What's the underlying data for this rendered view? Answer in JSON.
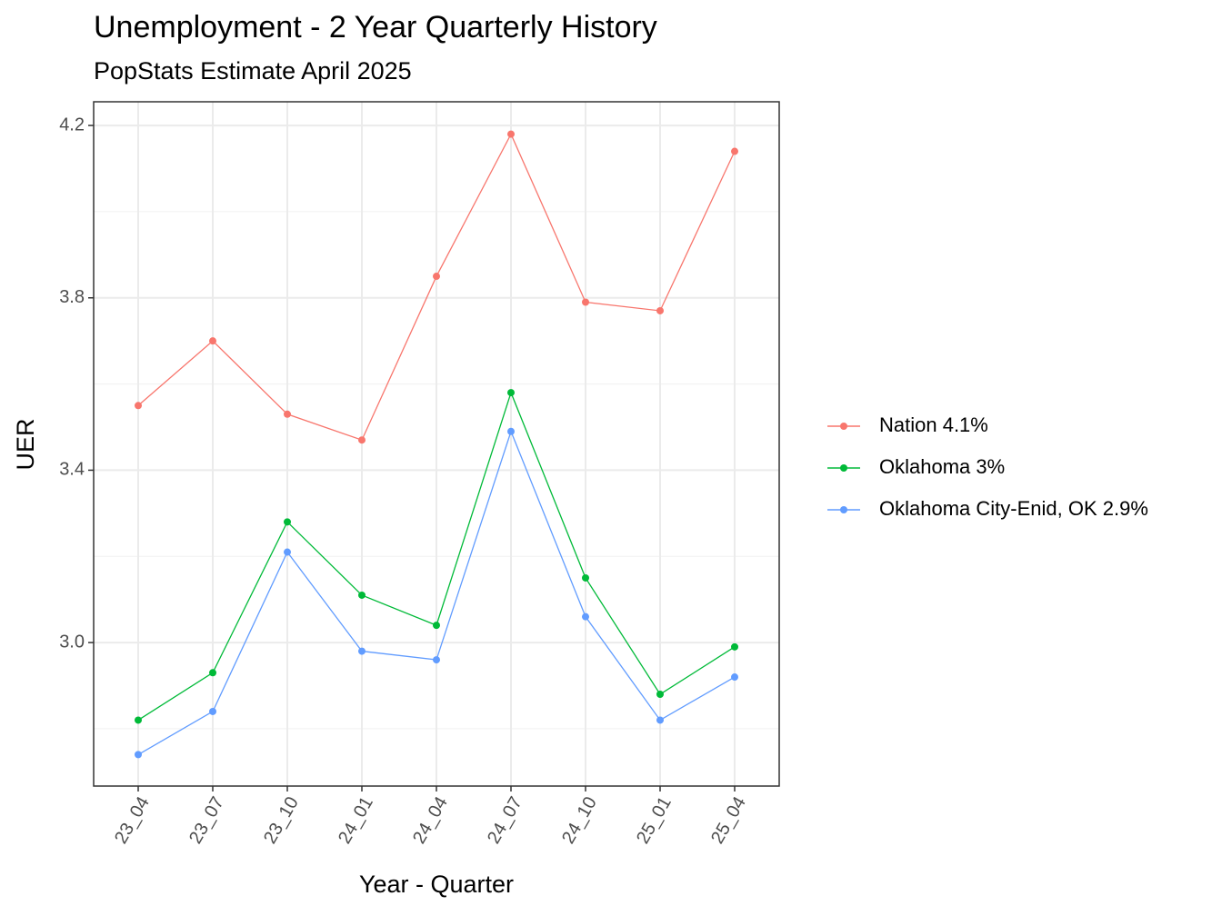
{
  "chart_data": {
    "type": "line",
    "title": "Unemployment - 2 Year Quarterly History",
    "subtitle": "PopStats Estimate April 2025",
    "x_label": "Year - Quarter",
    "y_label": "UER",
    "categories": [
      "23_04",
      "23_07",
      "23_10",
      "24_01",
      "24_04",
      "24_07",
      "24_10",
      "25_01",
      "25_04"
    ],
    "series": [
      {
        "name": "Nation 4.1%",
        "color": "#F8766D",
        "values": [
          3.55,
          3.7,
          3.53,
          3.47,
          3.85,
          4.18,
          3.79,
          3.77,
          4.14
        ]
      },
      {
        "name": "Oklahoma 3%",
        "color": "#00BA38",
        "values": [
          2.82,
          2.93,
          3.28,
          3.11,
          3.04,
          3.58,
          3.15,
          2.88,
          2.99
        ]
      },
      {
        "name": "Oklahoma City-Enid, OK 2.9%",
        "color": "#619CFF",
        "values": [
          2.74,
          2.84,
          3.21,
          2.98,
          2.96,
          3.49,
          3.06,
          2.82,
          2.92
        ]
      }
    ],
    "ylim": [
      2.667,
      4.255
    ],
    "yticks": [
      {
        "value": 3,
        "label": "3.0"
      },
      3.4,
      3.8,
      4.2
    ],
    "minor_yticks": [
      2.8,
      3.2,
      3.6,
      4.0
    ],
    "grid": true,
    "legend": "right"
  }
}
